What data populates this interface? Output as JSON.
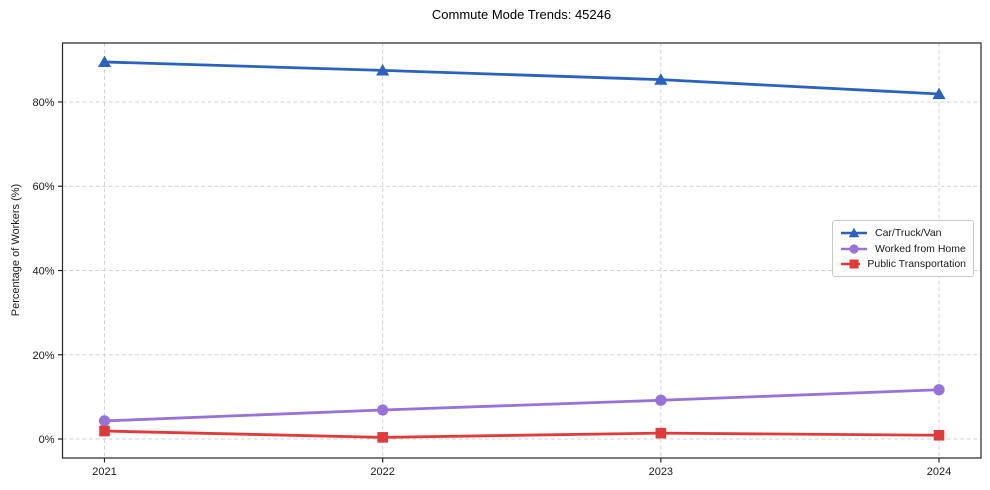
{
  "chart_data": {
    "type": "line",
    "title": "Commute Mode Trends: 45246",
    "ylabel": "Percentage of Workers (%)",
    "xlabel": "",
    "x": [
      "2021",
      "2022",
      "2023",
      "2024"
    ],
    "series": [
      {
        "name": "Car/Truck/Van",
        "color": "#2a62be",
        "marker": "triangle",
        "values": [
          89.5,
          87.5,
          85.3,
          81.9
        ]
      },
      {
        "name": "Worked from Home",
        "color": "#9673d7",
        "marker": "circle",
        "values": [
          4.3,
          6.9,
          9.2,
          11.7
        ]
      },
      {
        "name": "Public Transportation",
        "color": "#e03b3b",
        "marker": "square",
        "values": [
          1.9,
          0.4,
          1.4,
          0.9
        ]
      }
    ],
    "yticks": [
      0,
      20,
      40,
      60,
      80
    ],
    "ytick_labels": [
      "0%",
      "20%",
      "40%",
      "60%",
      "80%"
    ],
    "ylim": [
      -4.5,
      94.0
    ],
    "grid": true,
    "legend_position": "center-right",
    "colors": {
      "background": "#ffffff",
      "grid": "#d3d3d3",
      "spine": "#262626",
      "tick_text": "#1a1a1a"
    }
  }
}
